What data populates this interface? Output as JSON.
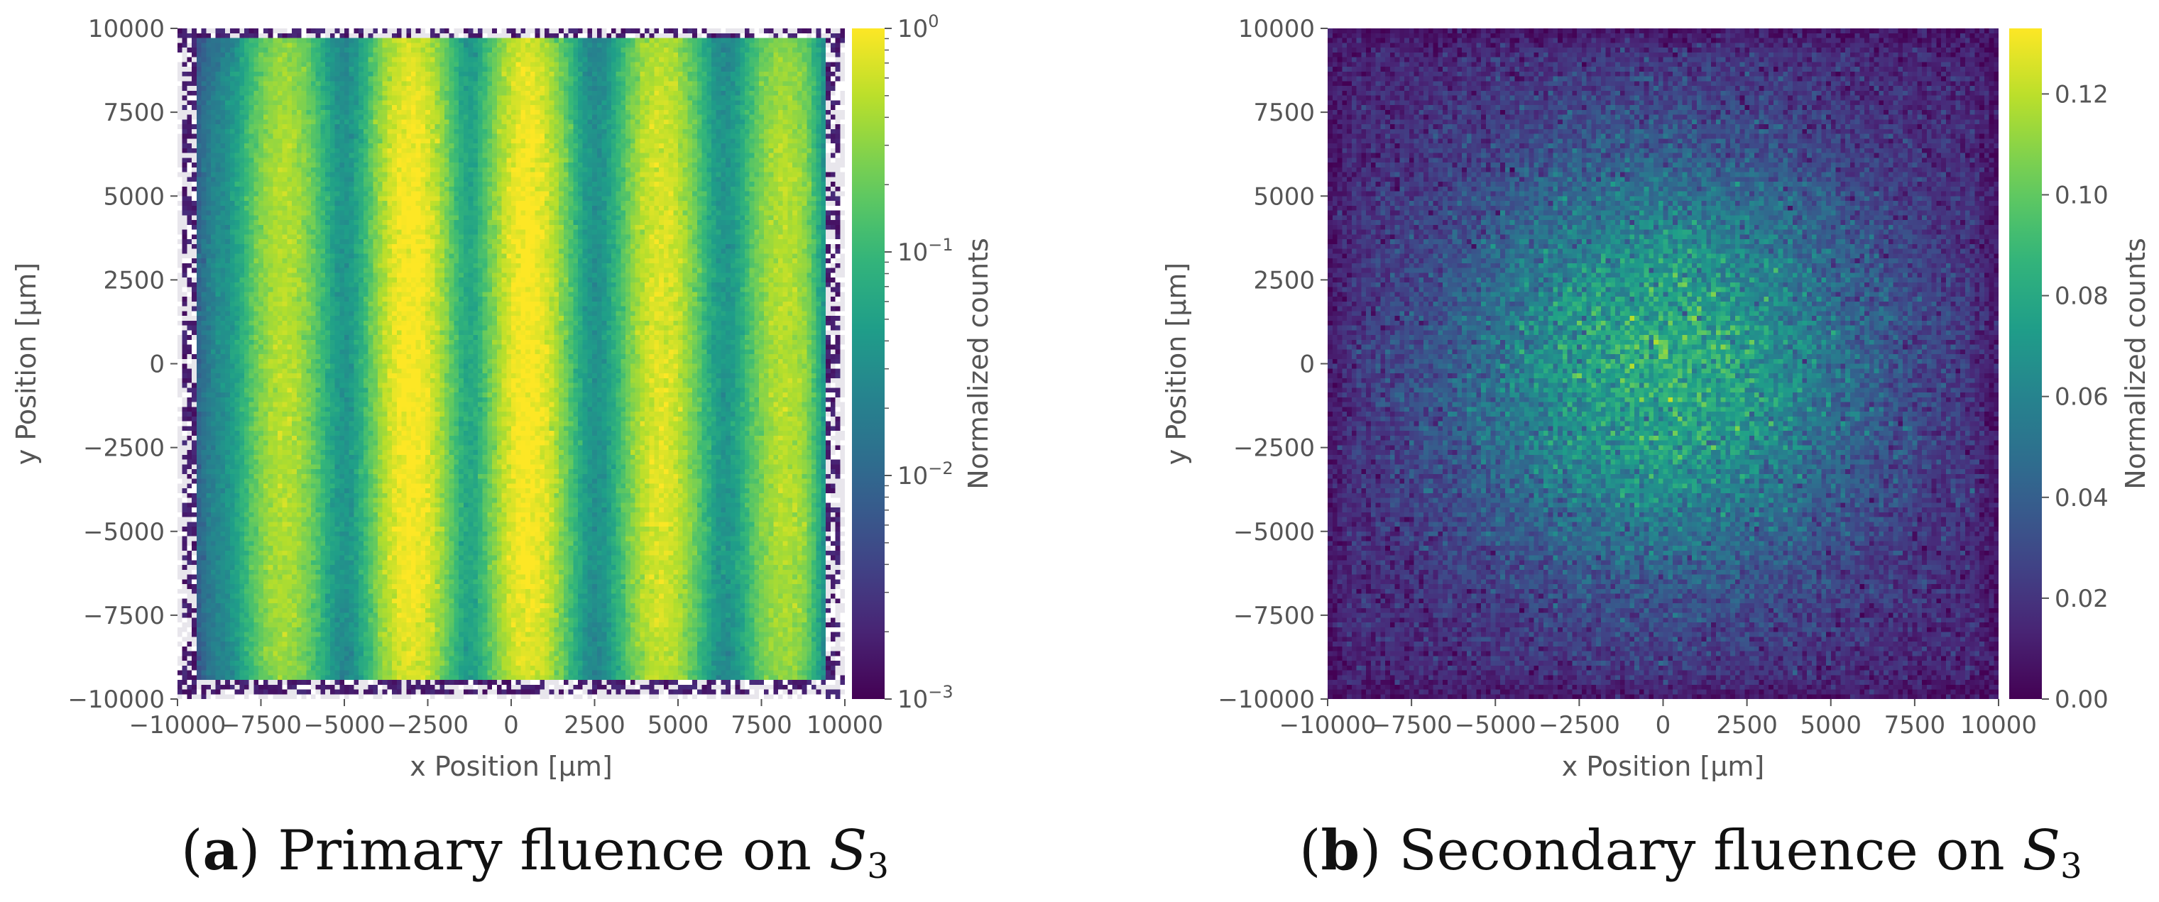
{
  "panels": [
    {
      "caption": {
        "tag": "a",
        "text": "Primary fluence on",
        "symbol": "S",
        "subscript": "3"
      },
      "chart_data": {
        "type": "heatmap",
        "xlabel": "x Position [μm]",
        "ylabel": "y Position [μm]",
        "xlim": [
          -10000,
          10000
        ],
        "ylim": [
          -10000,
          10000
        ],
        "xticks": [
          -10000,
          -7500,
          -5000,
          -2500,
          0,
          2500,
          5000,
          7500,
          10000
        ],
        "yticks": [
          -10000,
          -7500,
          -5000,
          -2500,
          0,
          2500,
          5000,
          7500,
          10000
        ],
        "xtick_labels": [
          "−10000",
          "−7500",
          "−5000",
          "−2500",
          "0",
          "2500",
          "5000",
          "7500",
          "10000"
        ],
        "ytick_labels": [
          "−10000",
          "−7500",
          "−5000",
          "−2500",
          "0",
          "2500",
          "5000",
          "7500",
          "10000"
        ],
        "colormap": "viridis",
        "colorbar": {
          "label": "Normalized counts",
          "scale": "log",
          "range": [
            0.001,
            1
          ],
          "ticks": [
            {
              "value": 1,
              "base": "10",
              "exp": "0"
            },
            {
              "value": 0.1,
              "base": "10",
              "exp": "−1"
            },
            {
              "value": 0.01,
              "base": "10",
              "exp": "−2"
            },
            {
              "value": 0.001,
              "base": "10",
              "exp": "−3"
            }
          ]
        },
        "pattern": "five vertical beam stripes",
        "stripe_centers_x": [
          -6800,
          -3000,
          500,
          4500,
          8200
        ],
        "stripe_peak": [
          0.45,
          1.0,
          1.0,
          0.7,
          0.45
        ],
        "active_area": {
          "x": [
            -9500,
            9500
          ],
          "y": [
            -9500,
            9700
          ]
        }
      }
    },
    {
      "caption": {
        "tag": "b",
        "text": "Secondary fluence on",
        "symbol": "S",
        "subscript": "3"
      },
      "chart_data": {
        "type": "heatmap",
        "xlabel": "x Position [μm]",
        "ylabel": "y Position [μm]",
        "xlim": [
          -10000,
          10000
        ],
        "ylim": [
          -10000,
          10000
        ],
        "xticks": [
          -10000,
          -7500,
          -5000,
          -2500,
          0,
          2500,
          5000,
          7500,
          10000
        ],
        "yticks": [
          -10000,
          -7500,
          -5000,
          -2500,
          0,
          2500,
          5000,
          7500,
          10000
        ],
        "xtick_labels": [
          "−10000",
          "−7500",
          "−5000",
          "−2500",
          "0",
          "2500",
          "5000",
          "7500",
          "10000"
        ],
        "ytick_labels": [
          "−10000",
          "−7500",
          "−5000",
          "−2500",
          "0",
          "2500",
          "5000",
          "7500",
          "10000"
        ],
        "colormap": "viridis",
        "colorbar": {
          "label": "Normalized counts",
          "scale": "linear",
          "range": [
            0,
            0.133
          ],
          "ticks": [
            {
              "value": 0.0,
              "label": "0.00"
            },
            {
              "value": 0.02,
              "label": "0.02"
            },
            {
              "value": 0.04,
              "label": "0.04"
            },
            {
              "value": 0.06,
              "label": "0.06"
            },
            {
              "value": 0.08,
              "label": "0.08"
            },
            {
              "value": 0.1,
              "label": "0.10"
            },
            {
              "value": 0.12,
              "label": "0.12"
            }
          ]
        },
        "pattern": "broad centred blob peaking near the middle",
        "peak_value": 0.133,
        "center": [
          0,
          0
        ]
      }
    }
  ]
}
